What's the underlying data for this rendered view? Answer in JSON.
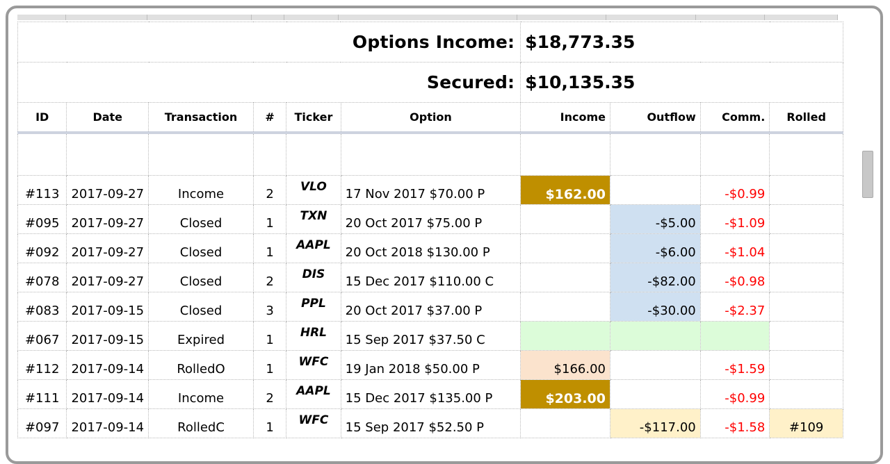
{
  "summary": {
    "income_label": "Options Income:",
    "income_value": "$18,773.35",
    "secured_label": "Secured:",
    "secured_value": "$10,135.35"
  },
  "columns": [
    "ID",
    "Date",
    "Transaction",
    "#",
    "Ticker",
    "Option",
    "Income",
    "Outflow",
    "Comm.",
    "Rolled"
  ],
  "rows": [
    {
      "id": "#113",
      "date": "2017-09-27",
      "transaction": "Income",
      "qty": "2",
      "ticker": "VLO",
      "option": "17 Nov 2017 $70.00 P",
      "income": "$162.00",
      "outflow": "",
      "comm": "-$0.99",
      "rolled": ""
    },
    {
      "id": "#095",
      "date": "2017-09-27",
      "transaction": "Closed",
      "qty": "1",
      "ticker": "TXN",
      "option": "20 Oct 2017 $75.00 P",
      "income": "",
      "outflow": "-$5.00",
      "comm": "-$1.09",
      "rolled": ""
    },
    {
      "id": "#092",
      "date": "2017-09-27",
      "transaction": "Closed",
      "qty": "1",
      "ticker": "AAPL",
      "option": "20 Oct 2018 $130.00 P",
      "income": "",
      "outflow": "-$6.00",
      "comm": "-$1.04",
      "rolled": ""
    },
    {
      "id": "#078",
      "date": "2017-09-27",
      "transaction": "Closed",
      "qty": "2",
      "ticker": "DIS",
      "option": "15 Dec 2017 $110.00 C",
      "income": "",
      "outflow": "-$82.00",
      "comm": "-$0.98",
      "rolled": ""
    },
    {
      "id": "#083",
      "date": "2017-09-15",
      "transaction": "Closed",
      "qty": "3",
      "ticker": "PPL",
      "option": "20 Oct 2017 $37.00 P",
      "income": "",
      "outflow": "-$30.00",
      "comm": "-$2.37",
      "rolled": ""
    },
    {
      "id": "#067",
      "date": "2017-09-15",
      "transaction": "Expired",
      "qty": "1",
      "ticker": "HRL",
      "option": "15 Sep 2017 $37.50 C",
      "income": "",
      "outflow": "",
      "comm": "",
      "rolled": ""
    },
    {
      "id": "#112",
      "date": "2017-09-14",
      "transaction": "RolledO",
      "qty": "1",
      "ticker": "WFC",
      "option": "19 Jan 2018 $50.00 P",
      "income": "$166.00",
      "outflow": "",
      "comm": "-$1.59",
      "rolled": ""
    },
    {
      "id": "#111",
      "date": "2017-09-14",
      "transaction": "Income",
      "qty": "2",
      "ticker": "AAPL",
      "option": "15 Dec 2017 $135.00 P",
      "income": "$203.00",
      "outflow": "",
      "comm": "-$0.99",
      "rolled": ""
    },
    {
      "id": "#097",
      "date": "2017-09-14",
      "transaction": "RolledC",
      "qty": "1",
      "ticker": "WFC",
      "option": "15 Sep 2017 $52.50 P",
      "income": "",
      "outflow": "-$117.00",
      "comm": "-$1.58",
      "rolled": "#109"
    }
  ]
}
